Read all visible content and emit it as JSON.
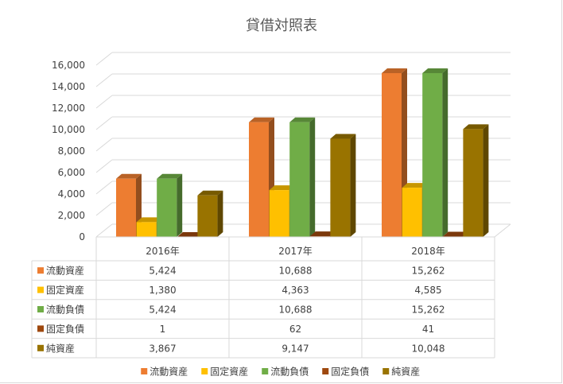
{
  "chart_data": {
    "type": "bar",
    "title": "貸借対照表",
    "categories": [
      "2016年",
      "2017年",
      "2018年"
    ],
    "ylim": [
      0,
      16000
    ],
    "yticks": [
      0,
      2000,
      4000,
      6000,
      8000,
      10000,
      12000,
      14000,
      16000
    ],
    "ytick_labels": [
      "0",
      "2,000",
      "4,000",
      "6,000",
      "8,000",
      "10,000",
      "12,000",
      "14,000",
      "16,000"
    ],
    "grid": true,
    "legend_position": "bottom",
    "data_table": true,
    "series": [
      {
        "name": "流動資産",
        "color": "#ed7d31",
        "values": [
          5424,
          10688,
          15262
        ],
        "labels": [
          "5,424",
          "10,688",
          "15,262"
        ]
      },
      {
        "name": "固定資産",
        "color": "#ffc000",
        "values": [
          1380,
          4363,
          4585
        ],
        "labels": [
          "1,380",
          "4,363",
          "4,585"
        ]
      },
      {
        "name": "流動負債",
        "color": "#70ad47",
        "values": [
          5424,
          10688,
          15262
        ],
        "labels": [
          "5,424",
          "10,688",
          "15,262"
        ]
      },
      {
        "name": "固定負債",
        "color": "#9e480e",
        "values": [
          1,
          62,
          41
        ],
        "labels": [
          "1",
          "62",
          "41"
        ]
      },
      {
        "name": "純資産",
        "color": "#997300",
        "values": [
          3867,
          9147,
          10048
        ],
        "labels": [
          "3,867",
          "9,147",
          "10,048"
        ]
      }
    ]
  }
}
